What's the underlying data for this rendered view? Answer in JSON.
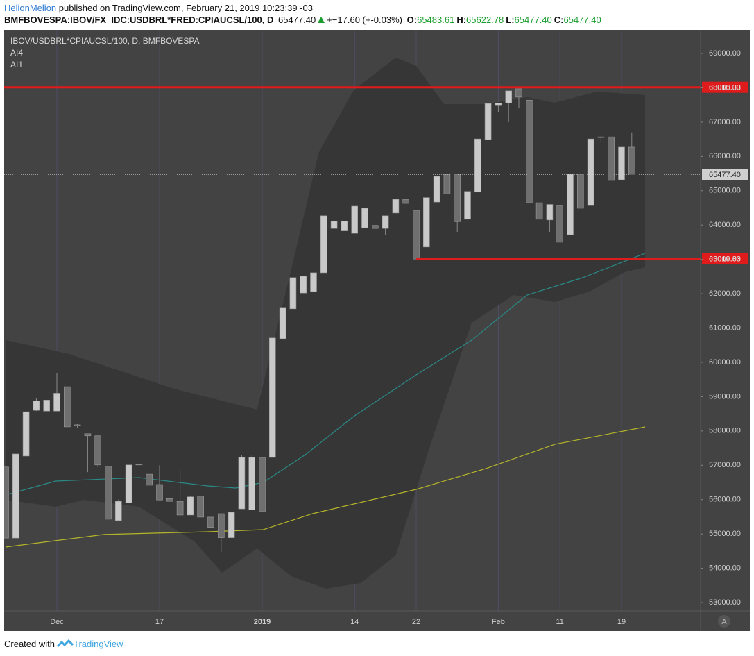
{
  "header": {
    "author": "HelionMelion",
    "published": "published on TradingView.com, February 21, 2019 10:23:39 -03",
    "symbol": "BMFBOVESPA:IBOV/FX_IDC:USDBRL*FRED:CPIAUCSL/100, D",
    "price": "65477.40",
    "change": "+−17.60 (+-0.03%)",
    "ohlc": [
      {
        "label": "O:",
        "value": "65483.61"
      },
      {
        "label": "H:",
        "value": "65622.78"
      },
      {
        "label": "L:",
        "value": "65477.40"
      },
      {
        "label": "C:",
        "value": "65477.40"
      }
    ]
  },
  "chart_data": {
    "type": "candlestick",
    "legend": [
      "IBOV/USDBRL*CPIAUCSL/100, D, BMFBOVESPA",
      "AI4",
      "AI1"
    ],
    "categories": [
      null,
      null,
      null,
      null,
      null,
      "Dec",
      null,
      null,
      null,
      null,
      null,
      null,
      null,
      null,
      null,
      "17",
      null,
      null,
      null,
      null,
      null,
      null,
      null,
      null,
      null,
      "2019",
      null,
      null,
      null,
      null,
      null,
      null,
      null,
      null,
      "14",
      null,
      null,
      null,
      null,
      null,
      "22",
      null,
      null,
      null,
      null,
      null,
      null,
      null,
      "Feb",
      null,
      null,
      null,
      null,
      null,
      "11",
      null,
      null,
      null,
      null,
      null,
      "19",
      null
    ],
    "open": [
      56950,
      54880,
      57270,
      58600,
      58580,
      58580,
      59290,
      58180,
      57920,
      57860,
      56970,
      55390,
      55900,
      57030,
      56740,
      56440,
      56030,
      55950,
      55550,
      56100,
      55490,
      55590,
      54890,
      55730,
      55700,
      57230,
      57230,
      60690,
      61560,
      62020,
      62060,
      62610,
      63900,
      63830,
      63760,
      63920,
      63990,
      63900,
      64350,
      64750,
      64430,
      63360,
      64670,
      65480,
      65480,
      64170,
      64960,
      66490,
      67500,
      67560,
      67970,
      67640,
      64650,
      64150,
      64570,
      63720,
      65480,
      64570,
      66570,
      66570,
      65320,
      66270
    ],
    "high": [
      56950,
      57330,
      58560,
      58950,
      58900,
      59680,
      59290,
      58200,
      57920,
      57900,
      56970,
      56000,
      57010,
      57060,
      56740,
      57000,
      56030,
      56900,
      56100,
      56100,
      55490,
      55590,
      55630,
      57300,
      57300,
      57230,
      60710,
      61600,
      62470,
      62510,
      62610,
      64270,
      64110,
      64110,
      64550,
      64490,
      63990,
      64270,
      64750,
      64750,
      64430,
      64800,
      65420,
      65480,
      65480,
      64980,
      66510,
      67540,
      67550,
      67910,
      67970,
      67640,
      64650,
      64600,
      64570,
      65480,
      65480,
      66510,
      66600,
      66570,
      66270,
      66700
    ],
    "low": [
      54880,
      54880,
      57270,
      58580,
      58580,
      58580,
      58120,
      58100,
      56800,
      56950,
      55430,
      55390,
      55900,
      56990,
      56420,
      55990,
      55950,
      55550,
      55550,
      55490,
      55190,
      54480,
      54890,
      55730,
      55700,
      55650,
      57230,
      60690,
      61560,
      62020,
      62060,
      62610,
      63900,
      63830,
      63760,
      63920,
      63900,
      63720,
      64350,
      64630,
      63010,
      63360,
      64670,
      64910,
      63800,
      64170,
      64960,
      66490,
      67300,
      67000,
      67400,
      64650,
      64170,
      63800,
      63500,
      63720,
      64490,
      64570,
      66400,
      65300,
      65320,
      65480
    ],
    "close": [
      54880,
      57330,
      58560,
      58880,
      58900,
      59100,
      58120,
      58150,
      57860,
      57010,
      55430,
      55950,
      57010,
      57020,
      56420,
      55990,
      55950,
      55550,
      56080,
      55490,
      55190,
      54890,
      55630,
      57230,
      57230,
      55650,
      60710,
      61600,
      62470,
      62510,
      62610,
      64270,
      64110,
      64110,
      64550,
      64490,
      63900,
      64270,
      64750,
      64630,
      63010,
      64800,
      65420,
      64910,
      64100,
      64980,
      66510,
      67540,
      67550,
      67910,
      67730,
      64650,
      64170,
      64600,
      63500,
      65480,
      64490,
      66510,
      66560,
      65300,
      66270,
      65480
    ],
    "up_color": "#c9c9c9",
    "down_color": "#6f6f6f",
    "ylim": [
      52758,
      69688
    ],
    "yticks": [
      {
        "value": 53000,
        "label": "53000.00"
      },
      {
        "value": 54000,
        "label": "54000.00"
      },
      {
        "value": 55000,
        "label": "55000.00"
      },
      {
        "value": 56000,
        "label": "56000.00"
      },
      {
        "value": 57000,
        "label": "57000.00"
      },
      {
        "value": 58000,
        "label": "58000.00"
      },
      {
        "value": 59000,
        "label": "59000.00"
      },
      {
        "value": 60000,
        "label": "60000.00"
      },
      {
        "value": 61000,
        "label": "61000.00"
      },
      {
        "value": 62000,
        "label": "62000.00"
      },
      {
        "value": 63000,
        "label": "63000.00"
      },
      {
        "value": 64000,
        "label": "64000.00"
      },
      {
        "value": 65000,
        "label": "65000.00"
      },
      {
        "value": 66000,
        "label": "66000.00"
      },
      {
        "value": 67000,
        "label": "67000.00"
      },
      {
        "value": 68000,
        "label": "68000.00"
      },
      {
        "value": 69000,
        "label": "69000.00"
      }
    ],
    "band": {
      "color": "#363636",
      "upper": {
        "x": [
          0,
          6.2,
          16.4,
          24.5,
          27.8,
          30.5,
          33.9,
          38,
          40,
          42.7,
          46.8,
          50.8,
          53.5,
          57.6,
          62.3
        ],
        "values": [
          60647,
          60242,
          59231,
          58624,
          62669,
          66108,
          67928,
          68879,
          68636,
          67524,
          67524,
          67726,
          67564,
          67888,
          67786
        ]
      },
      "lower": {
        "x": [
          0,
          4.9,
          7.6,
          13,
          18.4,
          21.1,
          24.5,
          27.8,
          31.2,
          34.6,
          38,
          41.4,
          45.4,
          49.5,
          53.5,
          56.9,
          60.3,
          62.3
        ],
        "values": [
          55995,
          55793,
          55995,
          55793,
          54781,
          53871,
          54579,
          53770,
          53406,
          53568,
          54377,
          57613,
          61152,
          61961,
          61759,
          62063,
          62629,
          62770
        ]
      }
    },
    "lines": [
      {
        "color": "#2a8a86",
        "x": [
          0,
          4.9,
          13,
          19.7,
          22.4,
          25.1,
          29.2,
          33.9,
          40,
          45.4,
          50.8,
          56.2,
          62.3
        ],
        "values": [
          56136,
          56540,
          56641,
          56399,
          56338,
          56500,
          57309,
          58422,
          59635,
          60647,
          61961,
          62467,
          63175
        ]
      },
      {
        "color": "#b5b52a",
        "x": [
          0,
          9.6,
          19.7,
          25.1,
          29.9,
          40,
          46.8,
          53.5,
          62.3
        ],
        "values": [
          54619,
          54985,
          55064,
          55125,
          55590,
          56298,
          56905,
          57612,
          58118
        ]
      }
    ],
    "hlines": [
      {
        "value": 68015.33,
        "color": "#e01b1b"
      },
      {
        "value": 63019.83,
        "color": "#e01b1b",
        "start": 40
      }
    ],
    "last_price": {
      "value": 65477.4,
      "label": "65477.40",
      "color": "#d0d0d0"
    }
  },
  "footer": {
    "created": "Created with",
    "brand": "TradingView"
  },
  "scale_button": "A"
}
